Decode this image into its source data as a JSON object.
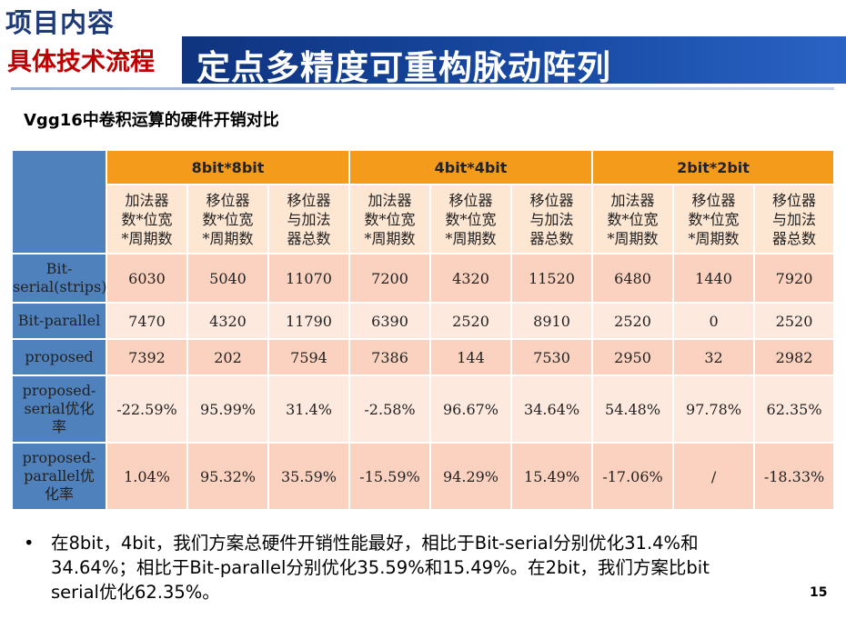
{
  "header": {
    "section": "项目内容",
    "subsection": "具体技术流程",
    "title": "定点多精度可重构脉动阵列"
  },
  "subtitle": "Vgg16中卷积运算的硬件开销对比",
  "table": {
    "groups": [
      "8bit*8bit",
      "4bit*4bit",
      "2bit*2bit"
    ],
    "subheaders": [
      [
        "加法器",
        "数*位宽",
        "*周期数"
      ],
      [
        "移位器",
        "数*位宽",
        "*周期数"
      ],
      [
        "移位器",
        "与加法",
        "器总数"
      ]
    ],
    "rows": [
      {
        "label": [
          "Bit-",
          "serial(strips)"
        ],
        "values": [
          "6030",
          "5040",
          "11070",
          "7200",
          "4320",
          "11520",
          "6480",
          "1440",
          "7920"
        ]
      },
      {
        "label": [
          "Bit-parallel"
        ],
        "values": [
          "7470",
          "4320",
          "11790",
          "6390",
          "2520",
          "8910",
          "2520",
          "0",
          "2520"
        ]
      },
      {
        "label": [
          "proposed"
        ],
        "values": [
          "7392",
          "202",
          "7594",
          "7386",
          "144",
          "7530",
          "2950",
          "32",
          "2982"
        ]
      },
      {
        "label": [
          "proposed-",
          "serial优化",
          "率"
        ],
        "values": [
          "-22.59%",
          "95.99%",
          "31.4%",
          "-2.58%",
          "96.67%",
          "34.64%",
          "54.48%",
          "97.78%",
          "62.35%"
        ]
      },
      {
        "label": [
          "proposed-",
          "parallel优",
          "化率"
        ],
        "values": [
          "1.04%",
          "95.32%",
          "35.59%",
          "-15.59%",
          "94.29%",
          "15.49%",
          "-17.06%",
          "/",
          "-18.33%"
        ]
      }
    ]
  },
  "bullet": {
    "marker": "•",
    "lines": [
      "在8bit，4bit，我们方案总硬件开销性能最好，相比于Bit-serial分别优化31.4%和",
      "34.64%；相比于Bit-parallel分别优化35.59%和15.49%。在2bit，我们方案比bit",
      "serial优化62.35%。"
    ]
  },
  "page_number": "15",
  "colors": {
    "banner": "#123a8a",
    "header_orange": "#f59b1c",
    "row_head_blue": "#4f81bd",
    "cell_dark": "#fbd2bf",
    "cell_light": "#fde9de",
    "subtitle_red": "#c00000"
  }
}
